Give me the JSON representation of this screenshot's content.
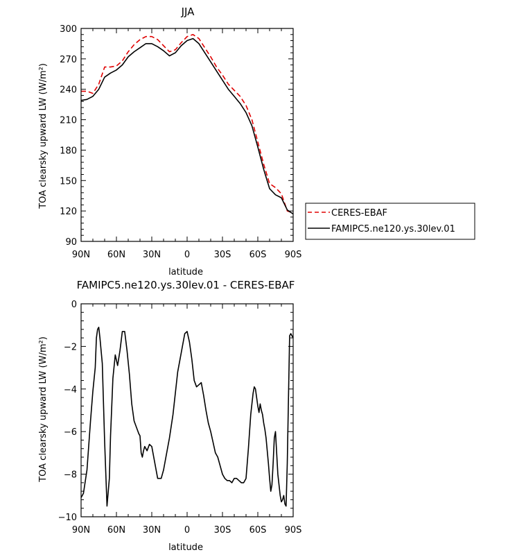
{
  "chart_data": [
    {
      "type": "line",
      "title": "JJA",
      "xlabel": "latitude",
      "ylabel": "TOA clearsky upward LW (W/m²)",
      "xlim": [
        90,
        -90
      ],
      "ylim": [
        90,
        300
      ],
      "xticks": [
        90,
        60,
        30,
        0,
        -30,
        -60,
        -90
      ],
      "xtick_labels": [
        "90N",
        "60N",
        "30N",
        "0",
        "30S",
        "60S",
        "90S"
      ],
      "yticks": [
        90,
        120,
        150,
        180,
        210,
        240,
        270,
        300
      ],
      "ytick_labels": [
        "90",
        "120",
        "150",
        "180",
        "210",
        "240",
        "270",
        "300"
      ],
      "legend_placement": "right",
      "series": [
        {
          "name": "CERES-EBAF",
          "style": "dashed",
          "color": "#e00000",
          "x": [
            90,
            85,
            80,
            75,
            70,
            65,
            60,
            55,
            50,
            45,
            40,
            35,
            30,
            25,
            20,
            15,
            10,
            5,
            0,
            -5,
            -10,
            -15,
            -20,
            -25,
            -30,
            -35,
            -40,
            -45,
            -50,
            -55,
            -60,
            -65,
            -70,
            -75,
            -80,
            -85,
            -90
          ],
          "y": [
            238,
            238,
            236,
            245,
            262,
            262,
            263,
            268,
            277,
            284,
            289,
            292,
            292,
            289,
            283,
            277,
            279,
            286,
            292,
            294,
            290,
            281,
            272,
            262,
            254,
            245,
            239,
            233,
            224,
            210,
            188,
            166,
            147,
            143,
            137,
            120,
            118
          ]
        },
        {
          "name": "FAMIPC5.ne120.ys.30lev.01",
          "style": "solid",
          "color": "#000000",
          "x": [
            90,
            85,
            80,
            75,
            70,
            65,
            60,
            55,
            50,
            45,
            40,
            35,
            30,
            25,
            20,
            15,
            10,
            5,
            0,
            -5,
            -10,
            -15,
            -20,
            -25,
            -30,
            -35,
            -40,
            -45,
            -50,
            -55,
            -60,
            -65,
            -70,
            -75,
            -80,
            -85,
            -90
          ],
          "y": [
            229,
            230,
            233,
            240,
            252,
            256,
            259,
            264,
            272,
            277,
            281,
            285,
            285,
            282,
            278,
            273,
            276,
            283,
            288,
            290,
            285,
            276,
            267,
            258,
            249,
            240,
            233,
            226,
            217,
            204,
            183,
            161,
            142,
            136,
            133,
            121,
            117
          ]
        }
      ]
    },
    {
      "type": "line",
      "title": "FAMIPC5.ne120.ys.30lev.01 - CERES-EBAF",
      "xlabel": "latitude",
      "ylabel": "TOA clearsky upward LW (W/m²)",
      "xlim": [
        90,
        -90
      ],
      "ylim": [
        -10,
        0
      ],
      "xticks": [
        90,
        60,
        30,
        0,
        -30,
        -60,
        -90
      ],
      "xtick_labels": [
        "90N",
        "60N",
        "30N",
        "0",
        "30S",
        "60S",
        "90S"
      ],
      "yticks": [
        -10,
        -8,
        -6,
        -4,
        -2,
        0
      ],
      "ytick_labels": [
        "−10",
        "−8",
        "−6",
        "−4",
        "−2",
        "0"
      ],
      "series": [
        {
          "name": "",
          "style": "solid",
          "color": "#000000",
          "x": [
            90,
            88,
            85,
            82,
            80,
            78,
            77,
            76,
            75,
            74,
            72,
            70,
            68,
            66,
            65,
            63,
            61,
            59,
            57,
            55,
            53,
            51,
            49,
            47,
            45,
            43,
            41,
            40,
            39,
            38,
            37,
            36,
            34,
            32,
            30,
            28,
            25,
            22,
            20,
            18,
            15,
            12,
            10,
            8,
            6,
            4,
            2,
            0,
            -2,
            -4,
            -6,
            -8,
            -10,
            -12,
            -14,
            -16,
            -18,
            -20,
            -22,
            -24,
            -26,
            -28,
            -30,
            -32,
            -34,
            -36,
            -38,
            -40,
            -42,
            -44,
            -46,
            -48,
            -50,
            -52,
            -54,
            -56,
            -57,
            -58,
            -59,
            -60,
            -61,
            -62,
            -63,
            -64,
            -65,
            -66,
            -67,
            -68,
            -69,
            -70,
            -71,
            -72,
            -73,
            -74,
            -75,
            -76,
            -77,
            -78,
            -79,
            -80,
            -81,
            -82,
            -83,
            -84,
            -85,
            -86,
            -87,
            -88,
            -89,
            -90
          ],
          "y": [
            -9.1,
            -8.9,
            -7.8,
            -5.5,
            -4.1,
            -3.0,
            -1.6,
            -1.2,
            -1.1,
            -1.6,
            -2.8,
            -6.5,
            -9.5,
            -8.2,
            -6.2,
            -3.5,
            -2.4,
            -2.9,
            -2.2,
            -1.3,
            -1.3,
            -2.2,
            -3.3,
            -4.7,
            -5.5,
            -5.8,
            -6.1,
            -6.2,
            -7.0,
            -7.2,
            -6.9,
            -6.7,
            -6.9,
            -6.6,
            -6.7,
            -7.3,
            -8.2,
            -8.2,
            -7.8,
            -7.2,
            -6.3,
            -5.2,
            -4.2,
            -3.2,
            -2.6,
            -2.0,
            -1.4,
            -1.3,
            -1.8,
            -2.6,
            -3.6,
            -3.9,
            -3.8,
            -3.7,
            -4.3,
            -5.0,
            -5.6,
            -6.0,
            -6.5,
            -7.0,
            -7.2,
            -7.6,
            -8.0,
            -8.2,
            -8.3,
            -8.3,
            -8.4,
            -8.2,
            -8.2,
            -8.3,
            -8.4,
            -8.4,
            -8.2,
            -6.8,
            -5.2,
            -4.2,
            -3.9,
            -4.0,
            -4.4,
            -4.8,
            -5.1,
            -4.7,
            -5.0,
            -5.2,
            -5.6,
            -5.9,
            -6.3,
            -6.9,
            -7.5,
            -8.2,
            -8.8,
            -8.5,
            -7.5,
            -6.3,
            -6.0,
            -7.0,
            -8.0,
            -8.5,
            -9.0,
            -9.3,
            -9.2,
            -9.0,
            -9.4,
            -9.5,
            -7.5,
            -4.5,
            -1.5,
            -1.4,
            -1.5,
            -1.6
          ]
        }
      ]
    }
  ]
}
